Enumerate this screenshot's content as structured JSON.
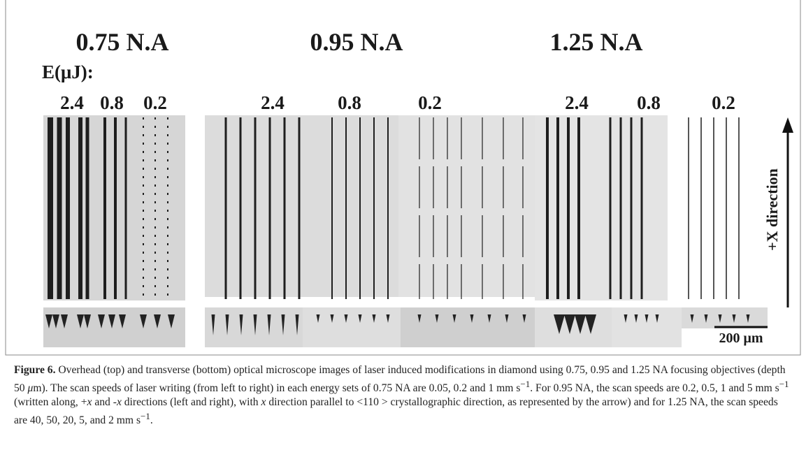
{
  "figure": {
    "panels": [
      {
        "title": "0.75 N.A",
        "energies": [
          "2.4",
          "0.8",
          "0.2"
        ]
      },
      {
        "title": "0.95 N.A",
        "energies": [
          "2.4",
          "0.8",
          "0.2"
        ]
      },
      {
        "title": "1.25 N.A",
        "energies": [
          "2.4",
          "0.8",
          "0.2"
        ]
      }
    ],
    "energy_label": "E(μJ):",
    "direction_label": "+X direction",
    "scale_bar": "200 μm"
  },
  "caption": {
    "runs": [
      "Figure 6.",
      " Overhead (top) and transverse (bottom) optical microscope images of laser induced modifications in diamond using 0.75, 0.95 and 1.25 NA focusing objectives (depth 50 ",
      "μ",
      "m). The scan speeds of laser writing (from left to right) in each energy sets of 0.75 NA are 0.05, 0.2 and 1 mm s",
      "−1",
      ". For 0.95 NA, the scan speeds are 0.2, 0.5, 1 and 5 mm s",
      "−1",
      " (written along, +",
      "x",
      " and -",
      "x",
      " directions (left and right), with ",
      "x",
      " direction parallel to <110 > crystallographic direction, as represented by the arrow) and for 1.25 NA, the scan speeds are 40, 50, 20, 5, and 2 mm s",
      "−1",
      "."
    ]
  }
}
